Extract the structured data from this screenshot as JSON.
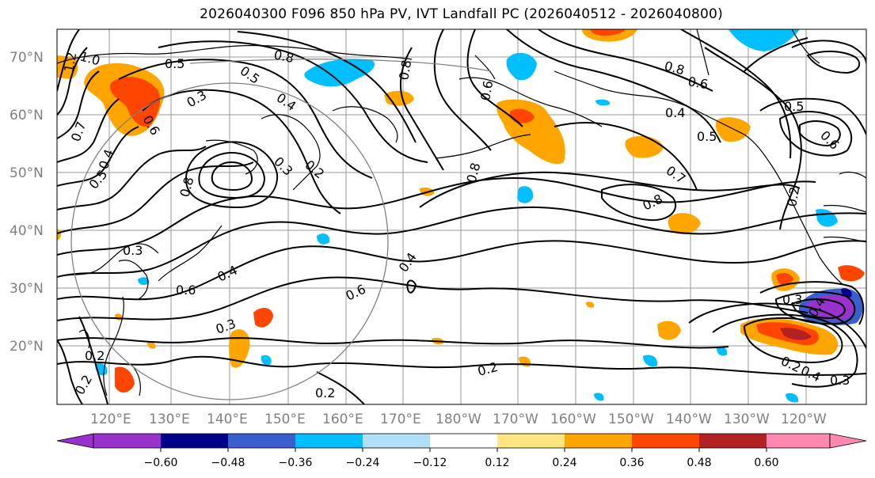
{
  "title": "2026040300 F096 850 hPa PV, IVT Landfall PC (2026040512 - 2026040800)",
  "lat_labels": [
    "70°N",
    "60°N",
    "50°N",
    "40°N",
    "30°N",
    "20°N"
  ],
  "lon_labels": [
    "120°E",
    "130°E",
    "140°E",
    "150°E",
    "160°E",
    "170°E",
    "180°W",
    "170°W",
    "160°W",
    "150°W",
    "140°W",
    "130°W",
    "120°W"
  ],
  "colorbar": {
    "ticks": [
      "−0.60",
      "−0.48",
      "−0.36",
      "−0.24",
      "−0.12",
      "0.12",
      "0.24",
      "0.36",
      "0.48",
      "0.60"
    ],
    "colors": [
      "#9932cc",
      "#00008b",
      "#3a5fcd",
      "#00bfff",
      "#b0e0f8",
      "#ffffff",
      "#ffe680",
      "#ffa500",
      "#ff4500",
      "#b22222",
      "#ff88b0"
    ]
  },
  "contour_labels": [
    "1.2",
    "1.0",
    "0.5",
    "0.8",
    "0.5",
    "0.4",
    "0.3",
    "0.6",
    "0.5",
    "0.7",
    "0.4",
    "0.3",
    "0.6",
    "0.4",
    "0.8",
    "0.3",
    "0.2",
    "0.3",
    "0.6",
    "0.4",
    "0.6",
    "0.8",
    "0.8",
    "0.7",
    "0.6",
    "0.5",
    "0.8",
    "0.5",
    "0.4",
    "0.8",
    "0.6",
    "0.4",
    "0.2",
    "0.3",
    "0.2",
    "0.2",
    "0.4",
    "0.3",
    "0.2",
    "0.2",
    "0.2"
  ],
  "colors": {
    "grid": "#9a9a9a",
    "coast": "#000000",
    "circle": "#808080"
  }
}
